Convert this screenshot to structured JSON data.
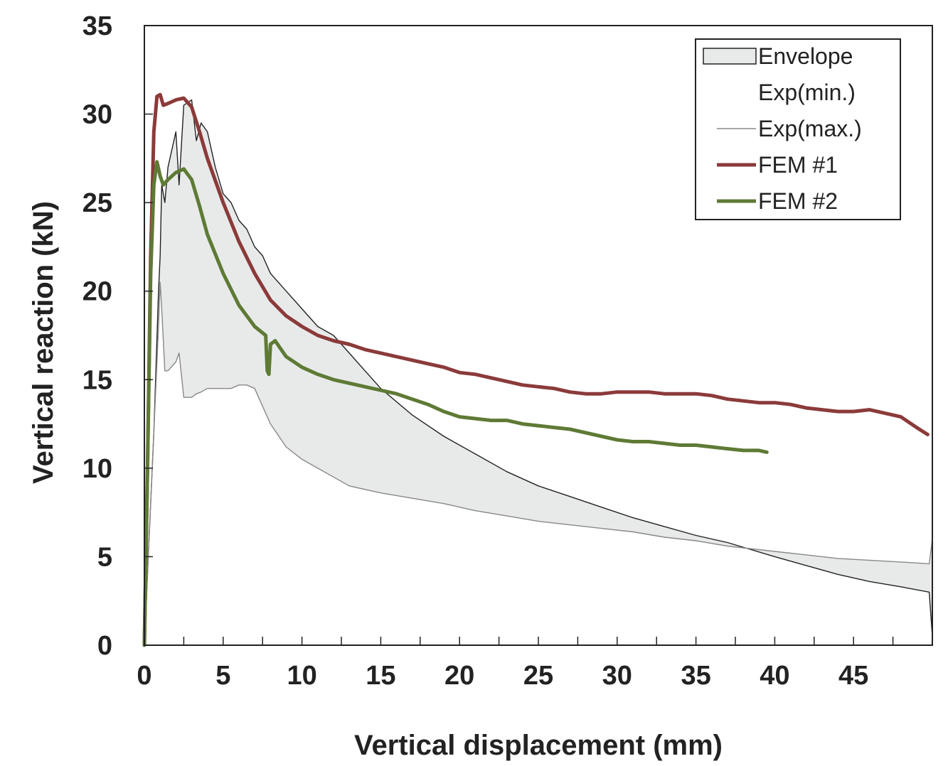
{
  "chart_data": {
    "type": "line",
    "title": "",
    "xlabel": "Vertical displacement (mm)",
    "ylabel": "Vertical reaction (kN)",
    "xlim": [
      0,
      50
    ],
    "ylim": [
      0,
      35
    ],
    "x_ticks": [
      0,
      5,
      10,
      15,
      20,
      25,
      30,
      35,
      40,
      45
    ],
    "y_ticks": [
      0,
      5,
      10,
      15,
      20,
      25,
      30,
      35
    ],
    "grid": false,
    "legend_position": "top-right",
    "colors": {
      "envelope_fill": "#e8eaea",
      "exp_min": "#222222",
      "exp_max": "#888888",
      "fem1": "#8b3a3a",
      "fem2": "#5e7a35"
    },
    "legend": [
      {
        "key": "envelope",
        "label": "Envelope"
      },
      {
        "key": "exp_min",
        "label": "Exp(min.)"
      },
      {
        "key": "exp_max",
        "label": "Exp(max.)"
      },
      {
        "key": "fem1",
        "label": "FEM #1"
      },
      {
        "key": "fem2",
        "label": "FEM #2"
      }
    ],
    "series": [
      {
        "name": "Exp(min.)",
        "key": "exp_min",
        "x": [
          0,
          0.3,
          0.6,
          0.9,
          1.0,
          1.1,
          1.3,
          1.5,
          2.0,
          2.2,
          2.5,
          3.0,
          3.3,
          3.6,
          4.0,
          4.5,
          5.0,
          5.5,
          6.0,
          6.5,
          7.0,
          7.5,
          8.0,
          9.0,
          10.0,
          11.0,
          12.0,
          13.0,
          14.0,
          15.0,
          17.0,
          19.0,
          21.0,
          23.0,
          25.0,
          27.0,
          29.0,
          31.0,
          33.0,
          35.0,
          37.0,
          40.0,
          42.0,
          44.0,
          46.0,
          48.0,
          49.8,
          50.0
        ],
        "y": [
          0,
          6,
          12,
          20,
          22,
          26,
          25,
          27,
          29,
          26,
          30.5,
          30.8,
          28.5,
          29.5,
          29.0,
          27.0,
          25.5,
          25.0,
          24.0,
          23.5,
          22.5,
          22.0,
          21.0,
          20.0,
          19.0,
          18.0,
          17.5,
          16.5,
          15.5,
          14.5,
          13.0,
          11.8,
          10.8,
          9.8,
          9.0,
          8.4,
          7.8,
          7.2,
          6.7,
          6.2,
          5.8,
          5.0,
          4.5,
          4.0,
          3.6,
          3.3,
          3.0,
          0.5
        ]
      },
      {
        "name": "Exp(max.)",
        "key": "exp_max",
        "x": [
          0,
          0.3,
          0.6,
          0.9,
          1.0,
          1.1,
          1.3,
          1.5,
          2.0,
          2.2,
          2.5,
          3.0,
          3.3,
          3.6,
          4.0,
          4.5,
          5.0,
          5.5,
          6.0,
          6.5,
          7.0,
          7.5,
          8.0,
          9.0,
          10.0,
          11.0,
          12.0,
          13.0,
          14.0,
          15.0,
          17.0,
          19.0,
          21.0,
          23.0,
          25.0,
          27.0,
          29.0,
          31.0,
          33.0,
          35.0,
          37.0,
          40.0,
          42.0,
          44.0,
          46.0,
          48.0,
          49.8,
          50.0
        ],
        "y": [
          0,
          6,
          12,
          18,
          20.5,
          19,
          15.5,
          15.5,
          16,
          16.5,
          14.0,
          14.0,
          14.2,
          14.3,
          14.5,
          14.5,
          14.5,
          14.5,
          14.7,
          14.7,
          14.5,
          13.5,
          12.5,
          11.2,
          10.5,
          10.0,
          9.5,
          9.0,
          8.8,
          8.6,
          8.3,
          8.0,
          7.6,
          7.3,
          7.0,
          6.8,
          6.6,
          6.4,
          6.1,
          5.9,
          5.6,
          5.3,
          5.1,
          4.9,
          4.8,
          4.7,
          4.6,
          6.0
        ]
      },
      {
        "name": "FEM #1",
        "key": "fem1",
        "x": [
          0,
          0.2,
          0.4,
          0.6,
          0.8,
          1.0,
          1.2,
          1.5,
          2.0,
          2.5,
          3.0,
          3.5,
          4.0,
          5.0,
          6.0,
          7.0,
          8.0,
          9.0,
          10.0,
          11.0,
          12.0,
          13.0,
          14.0,
          15.0,
          16.0,
          17.0,
          18.0,
          19.0,
          20.0,
          21.0,
          22.0,
          23.0,
          24.0,
          25.0,
          26.0,
          27.0,
          28.0,
          29.0,
          30.0,
          31.0,
          32.0,
          33.0,
          34.0,
          35.0,
          36.0,
          37.0,
          38.0,
          39.0,
          40.0,
          41.0,
          42.0,
          43.0,
          44.0,
          45.0,
          46.0,
          47.0,
          48.0,
          49.0,
          49.7
        ],
        "y": [
          0,
          10,
          22,
          29,
          31.0,
          31.1,
          30.5,
          30.6,
          30.8,
          30.9,
          30.4,
          29.0,
          27.5,
          25.0,
          22.8,
          21.0,
          19.5,
          18.6,
          18.0,
          17.5,
          17.2,
          17.0,
          16.7,
          16.5,
          16.3,
          16.1,
          15.9,
          15.7,
          15.4,
          15.3,
          15.1,
          14.9,
          14.7,
          14.6,
          14.5,
          14.3,
          14.2,
          14.2,
          14.3,
          14.3,
          14.3,
          14.2,
          14.2,
          14.2,
          14.1,
          13.9,
          13.8,
          13.7,
          13.7,
          13.6,
          13.4,
          13.3,
          13.2,
          13.2,
          13.3,
          13.1,
          12.9,
          12.3,
          11.9
        ]
      },
      {
        "name": "FEM #2",
        "key": "fem2",
        "x": [
          0,
          0.2,
          0.4,
          0.6,
          0.8,
          1.0,
          1.2,
          1.5,
          2.0,
          2.5,
          3.0,
          3.5,
          4.0,
          5.0,
          6.0,
          7.0,
          7.7,
          7.8,
          7.9,
          8.0,
          8.3,
          8.6,
          9.0,
          10.0,
          11.0,
          12.0,
          13.0,
          14.0,
          15.0,
          16.0,
          17.0,
          18.0,
          19.0,
          20.0,
          21.0,
          22.0,
          23.0,
          24.0,
          25.0,
          26.0,
          27.0,
          28.0,
          29.0,
          30.0,
          31.0,
          32.0,
          33.0,
          34.0,
          35.0,
          36.0,
          37.0,
          38.0,
          39.0,
          39.5
        ],
        "y": [
          0,
          10,
          21,
          26,
          27.3,
          26.5,
          26.0,
          26.3,
          26.7,
          26.9,
          26.3,
          24.8,
          23.2,
          21.0,
          19.2,
          18.0,
          17.5,
          15.5,
          15.3,
          17.0,
          17.2,
          16.8,
          16.3,
          15.7,
          15.3,
          15.0,
          14.8,
          14.6,
          14.4,
          14.2,
          13.9,
          13.6,
          13.2,
          12.9,
          12.8,
          12.7,
          12.7,
          12.5,
          12.4,
          12.3,
          12.2,
          12.0,
          11.8,
          11.6,
          11.5,
          11.5,
          11.4,
          11.3,
          11.3,
          11.2,
          11.1,
          11.0,
          11.0,
          10.9
        ]
      }
    ]
  }
}
